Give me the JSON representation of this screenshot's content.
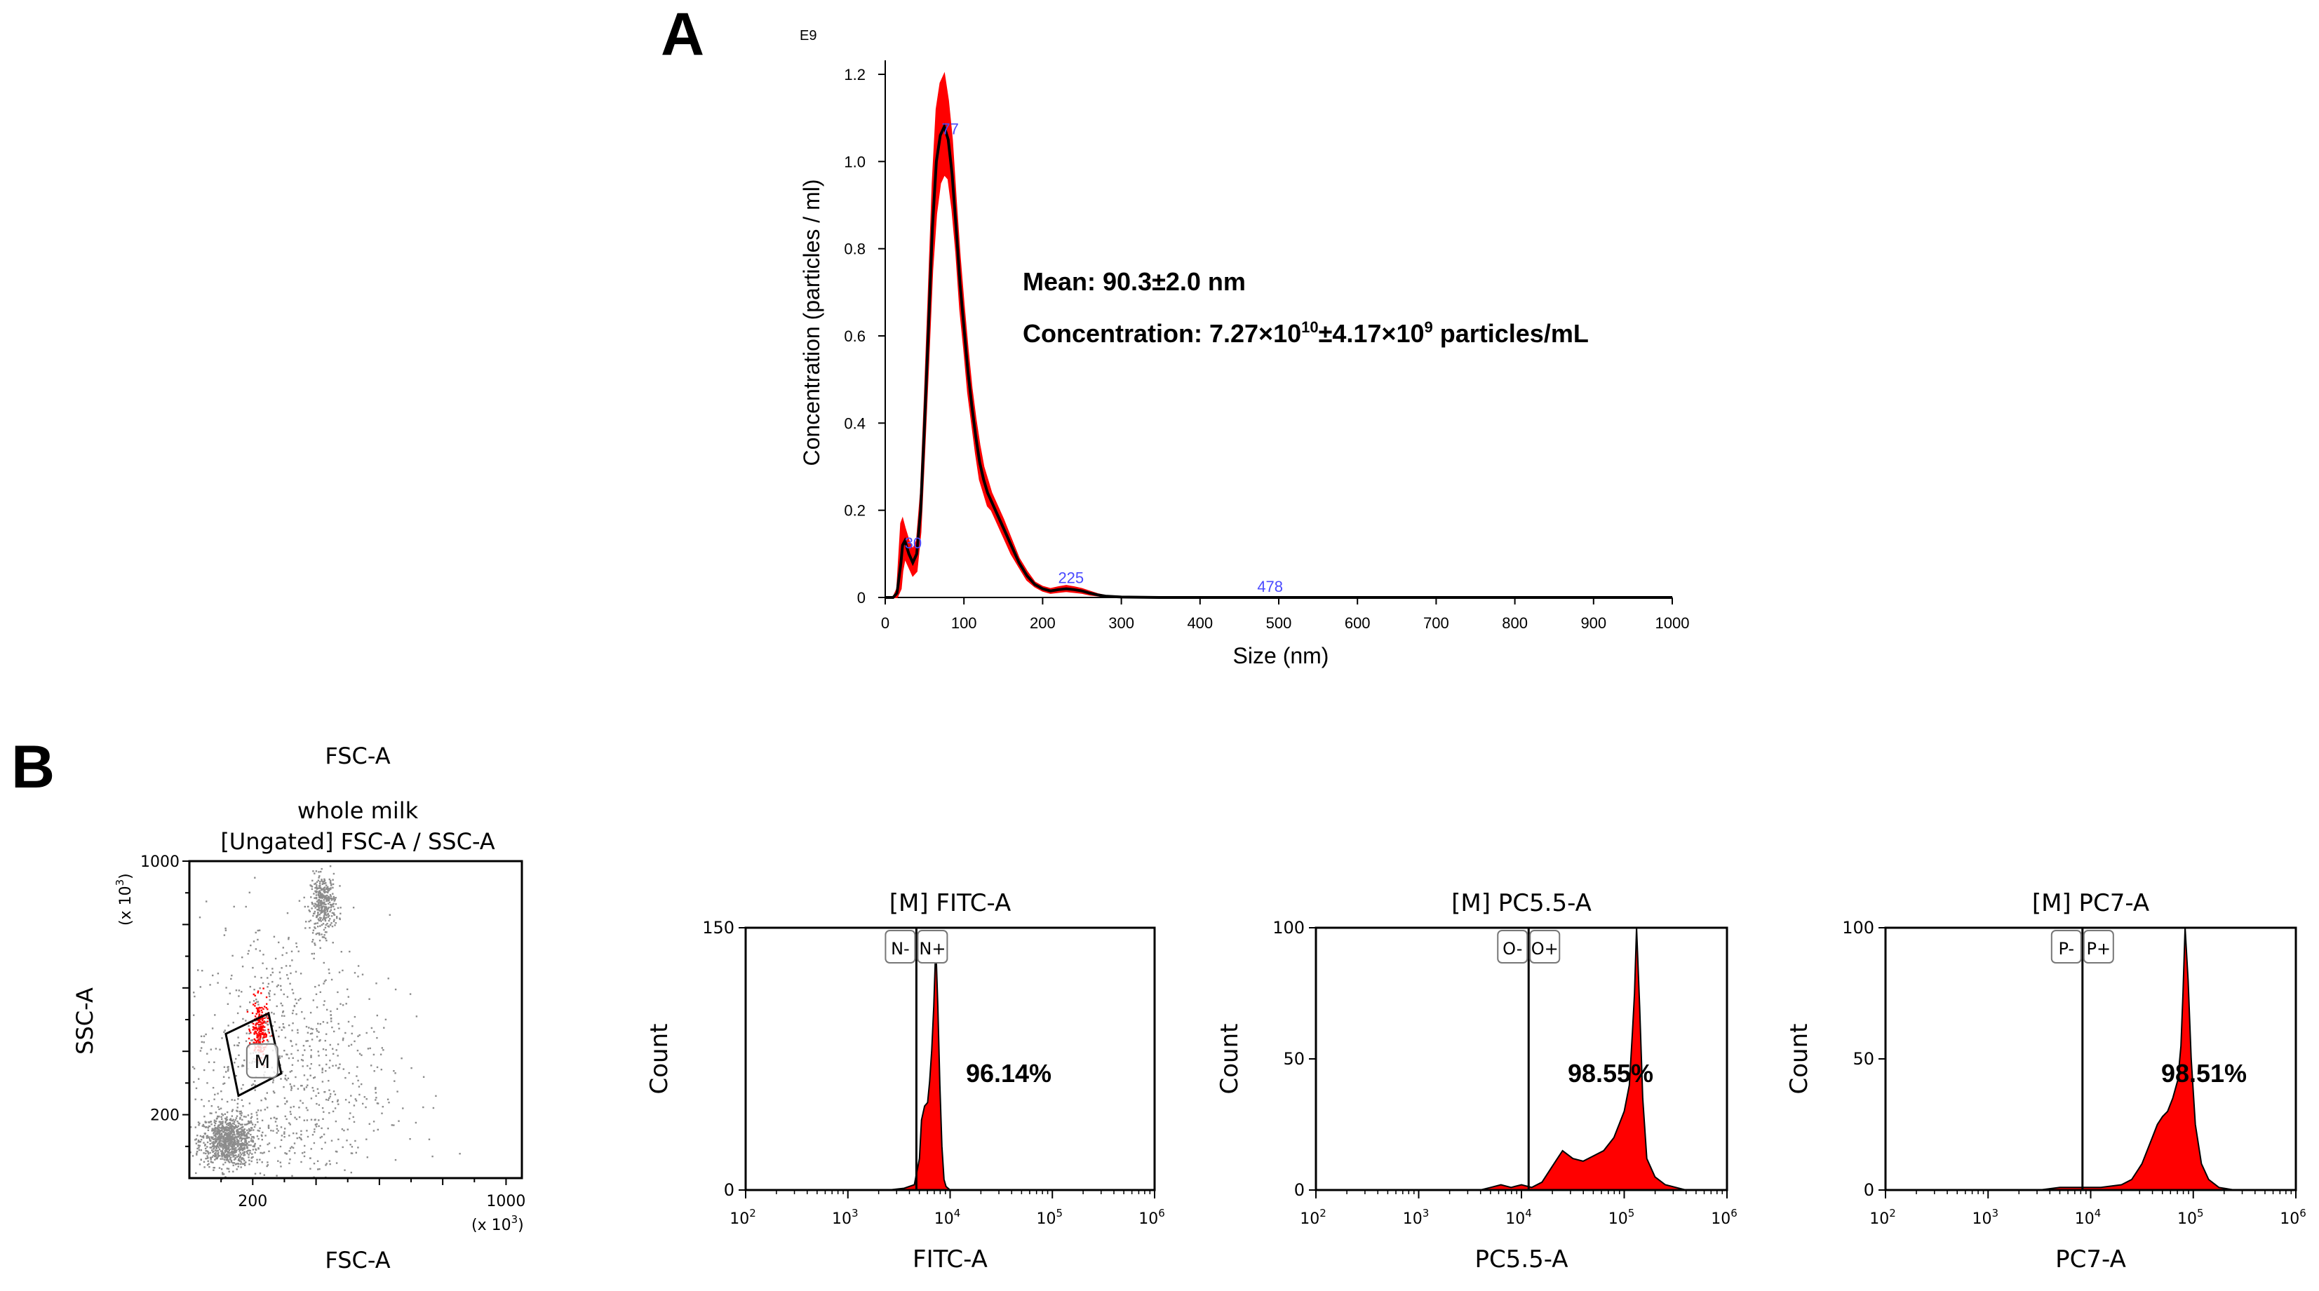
{
  "colors": {
    "accent": "#ff0000",
    "line": "#000000",
    "dots": "#8c8c8c",
    "label": "#4b4bff"
  },
  "figure": {
    "panel_a_letter": "A",
    "panel_b_letter": "B"
  },
  "chart_data": [
    {
      "id": "nta",
      "type": "line",
      "title": "",
      "xlabel": "Size (nm)",
      "ylabel": "Concentration (particles / ml)",
      "y_exponent_label": "E9",
      "xlim": [
        0,
        1000
      ],
      "ylim": [
        0,
        1.2
      ],
      "x_ticks": [
        0,
        100,
        200,
        300,
        400,
        500,
        600,
        700,
        800,
        900,
        1000
      ],
      "y_ticks": [
        0,
        0.2,
        0.4,
        0.6,
        0.8,
        1.0,
        1.2
      ],
      "y_tick_labels": [
        "0",
        "0.2",
        "0.4",
        "0.6",
        "0.8",
        "1.0",
        "1.2"
      ],
      "series": [
        {
          "name": "mean",
          "x": [
            0,
            10,
            15,
            20,
            22,
            25,
            30,
            35,
            40,
            45,
            50,
            55,
            60,
            65,
            70,
            75,
            80,
            85,
            90,
            95,
            100,
            105,
            110,
            115,
            120,
            125,
            130,
            135,
            140,
            150,
            160,
            170,
            180,
            190,
            200,
            210,
            220,
            230,
            240,
            250,
            260,
            270,
            280,
            300,
            350,
            400,
            500,
            600,
            700,
            800,
            900,
            1000
          ],
          "y": [
            0,
            0,
            0.01,
            0.08,
            0.12,
            0.13,
            0.1,
            0.08,
            0.1,
            0.2,
            0.4,
            0.62,
            0.85,
            1.0,
            1.06,
            1.08,
            1.05,
            0.97,
            0.85,
            0.72,
            0.62,
            0.52,
            0.44,
            0.37,
            0.31,
            0.27,
            0.24,
            0.22,
            0.2,
            0.16,
            0.12,
            0.08,
            0.05,
            0.03,
            0.02,
            0.015,
            0.018,
            0.02,
            0.018,
            0.015,
            0.01,
            0.006,
            0.003,
            0.001,
            0,
            0,
            0,
            0,
            0,
            0,
            0,
            0
          ]
        },
        {
          "name": "error_band",
          "x": [
            0,
            10,
            15,
            20,
            22,
            25,
            30,
            35,
            40,
            45,
            50,
            55,
            60,
            65,
            70,
            75,
            80,
            85,
            90,
            95,
            100,
            105,
            110,
            115,
            120,
            125,
            130,
            135,
            140,
            150,
            160,
            170,
            180,
            190,
            200,
            210,
            220,
            230,
            240,
            250,
            260,
            270,
            280,
            300,
            350,
            400,
            500,
            600,
            700,
            800,
            900,
            1000
          ],
          "upper": [
            0,
            0,
            0.02,
            0.17,
            0.18,
            0.16,
            0.13,
            0.11,
            0.13,
            0.24,
            0.46,
            0.7,
            0.95,
            1.12,
            1.18,
            1.2,
            1.14,
            1.05,
            0.91,
            0.78,
            0.67,
            0.57,
            0.48,
            0.41,
            0.35,
            0.3,
            0.27,
            0.24,
            0.22,
            0.18,
            0.135,
            0.09,
            0.06,
            0.035,
            0.025,
            0.02,
            0.024,
            0.027,
            0.024,
            0.02,
            0.014,
            0.008,
            0.004,
            0.001,
            0,
            0,
            0,
            0,
            0,
            0,
            0,
            0
          ],
          "lower": [
            0,
            0,
            0,
            0.02,
            0.06,
            0.09,
            0.07,
            0.05,
            0.06,
            0.15,
            0.34,
            0.54,
            0.75,
            0.88,
            0.95,
            0.97,
            0.96,
            0.89,
            0.79,
            0.66,
            0.57,
            0.47,
            0.4,
            0.33,
            0.27,
            0.24,
            0.21,
            0.2,
            0.18,
            0.14,
            0.1,
            0.07,
            0.04,
            0.025,
            0.015,
            0.01,
            0.012,
            0.014,
            0.012,
            0.01,
            0.006,
            0.004,
            0.002,
            0,
            0,
            0,
            0,
            0,
            0,
            0,
            0,
            0
          ]
        }
      ],
      "peak_labels": [
        {
          "x": 77,
          "y": 1.05,
          "text": "77"
        },
        {
          "x": 30,
          "y": 0.1,
          "text": "30"
        },
        {
          "x": 225,
          "y": 0.02,
          "text": "225"
        },
        {
          "x": 478,
          "y": 0.0,
          "text": "478"
        }
      ],
      "annotations": {
        "mean": "Mean: 90.3±2.0 nm",
        "conc_prefix": "Concentration: 7.27×10",
        "conc_exp1": "10",
        "conc_mid": "±4.17×10",
        "conc_exp2": "9",
        "conc_suffix": " particles/mL"
      }
    },
    {
      "id": "scatter",
      "type": "scatter",
      "header": "FSC-A",
      "title_line1": "whole milk",
      "title_line2": "[Ungated] FSC-A / SSC-A",
      "xlabel": "FSC-A",
      "ylabel": "SSC-A",
      "xlim": [
        0,
        1050
      ],
      "ylim": [
        0,
        1000
      ],
      "x_tick_labels": [
        {
          "v": 200,
          "t": "200"
        },
        {
          "v": 1000,
          "t": "1000"
        }
      ],
      "y_tick_labels": [
        {
          "v": 200,
          "t": "200"
        },
        {
          "v": 1000,
          "t": "1000"
        }
      ],
      "x_multiplier_base": "(x 10",
      "x_multiplier_exp": "3",
      "y_multiplier_base": "(x 10",
      "y_multiplier_exp": "3",
      "gate_label": "M",
      "gate_polygon": [
        [
          115,
          455
        ],
        [
          250,
          520
        ],
        [
          290,
          330
        ],
        [
          155,
          260
        ]
      ],
      "clusters": [
        {
          "cx": 120,
          "cy": 120,
          "sx": 45,
          "sy": 40,
          "n": 900,
          "color": "gray"
        },
        {
          "cx": 420,
          "cy": 870,
          "sx": 20,
          "sy": 45,
          "n": 350,
          "color": "gray"
        },
        {
          "cx": 220,
          "cy": 470,
          "sx": 13,
          "sy": 45,
          "n": 220,
          "color": "red"
        },
        {
          "cx": 290,
          "cy": 330,
          "sx": 170,
          "sy": 250,
          "n": 900,
          "color": "gray"
        }
      ]
    },
    {
      "id": "fitc",
      "type": "area",
      "title": "[M] FITC-A",
      "xlabel": "FITC-A",
      "ylabel": "Count",
      "x_log_range": [
        2,
        6
      ],
      "ylim": [
        0,
        150
      ],
      "y_ticks": [
        0,
        150
      ],
      "x_ticks": [
        2,
        3,
        4,
        5,
        6
      ],
      "gate_x_log": 3.67,
      "gate_labels": [
        "N-",
        "N+"
      ],
      "percent": "96.14%",
      "x": [
        2.0,
        3.4,
        3.55,
        3.65,
        3.7,
        3.72,
        3.75,
        3.78,
        3.8,
        3.82,
        3.84,
        3.86,
        3.88,
        3.9,
        3.92,
        3.94,
        3.96,
        4.0,
        4.05,
        6.0
      ],
      "y": [
        0,
        0,
        1,
        3,
        18,
        40,
        48,
        50,
        62,
        80,
        105,
        140,
        105,
        60,
        25,
        6,
        2,
        0,
        0,
        0
      ]
    },
    {
      "id": "pc55",
      "type": "area",
      "title": "[M] PC5.5-A",
      "xlabel": "PC5.5-A",
      "ylabel": "Count",
      "x_log_range": [
        2,
        6
      ],
      "ylim": [
        0,
        100
      ],
      "y_ticks": [
        0,
        50,
        100
      ],
      "x_ticks": [
        2,
        3,
        4,
        5,
        6
      ],
      "gate_x_log": 4.07,
      "gate_labels": [
        "O-",
        "O+"
      ],
      "percent": "98.55%",
      "x": [
        2.0,
        3.6,
        3.7,
        3.8,
        3.9,
        4.0,
        4.1,
        4.2,
        4.3,
        4.4,
        4.5,
        4.6,
        4.7,
        4.8,
        4.9,
        4.95,
        5.0,
        5.05,
        5.08,
        5.1,
        5.12,
        5.15,
        5.18,
        5.22,
        5.3,
        5.4,
        5.6,
        6.0
      ],
      "y": [
        0,
        0,
        1,
        2,
        1,
        2,
        1,
        3,
        9,
        15,
        12,
        11,
        13,
        15,
        20,
        25,
        30,
        40,
        60,
        75,
        100,
        70,
        35,
        12,
        5,
        2,
        0,
        0
      ]
    },
    {
      "id": "pc7",
      "type": "area",
      "title": "[M] PC7-A",
      "xlabel": "PC7-A",
      "ylabel": "Count",
      "x_log_range": [
        2,
        6
      ],
      "ylim": [
        0,
        100
      ],
      "y_ticks": [
        0,
        50,
        100
      ],
      "x_ticks": [
        2,
        3,
        4,
        5,
        6
      ],
      "gate_x_log": 3.92,
      "gate_labels": [
        "P-",
        "P+"
      ],
      "percent": "98.51%",
      "x": [
        2.0,
        3.5,
        3.7,
        3.9,
        4.1,
        4.3,
        4.4,
        4.5,
        4.6,
        4.65,
        4.7,
        4.75,
        4.8,
        4.85,
        4.88,
        4.9,
        4.92,
        4.95,
        4.98,
        5.02,
        5.08,
        5.15,
        5.25,
        5.4,
        6.0
      ],
      "y": [
        0,
        0,
        1,
        1,
        1,
        2,
        4,
        10,
        20,
        25,
        28,
        30,
        35,
        42,
        55,
        75,
        100,
        80,
        50,
        25,
        10,
        4,
        1,
        0,
        0
      ]
    }
  ]
}
